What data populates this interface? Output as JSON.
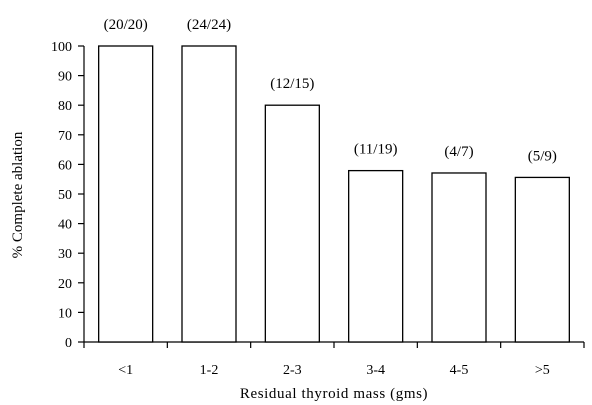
{
  "chart_data": {
    "type": "bar",
    "categories": [
      "<1",
      "1-2",
      "2-3",
      "3-4",
      "4-5",
      ">5"
    ],
    "values": [
      100,
      100,
      80,
      57.9,
      57.1,
      55.6
    ],
    "data_labels": [
      "(20/20)",
      "(24/24)",
      "(12/15)",
      "(11/19)",
      "(4/7)",
      "(5/9)"
    ],
    "xlabel": "Residual thyroid mass (gms)",
    "ylabel": "% Complete ablation",
    "ylim": [
      0,
      100
    ],
    "yticks": [
      0,
      10,
      20,
      30,
      40,
      50,
      60,
      70,
      80,
      90,
      100
    ],
    "grid": false,
    "colors": {
      "bar_fill": "#ffffff",
      "bar_stroke": "#000000"
    }
  }
}
